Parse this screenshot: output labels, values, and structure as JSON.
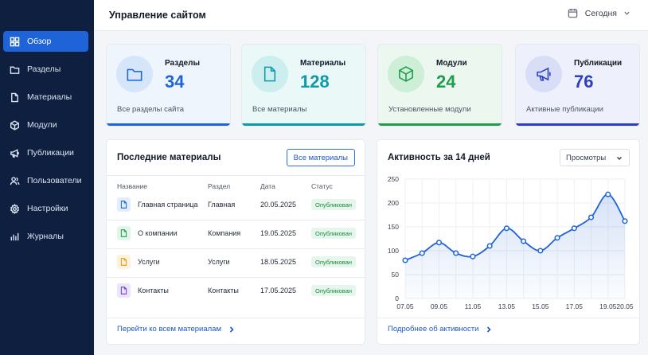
{
  "header": {
    "title": "Управление сайтом",
    "date_filter": "Сегодня"
  },
  "sidebar": {
    "items": [
      {
        "label": "Обзор",
        "icon": "grid-icon",
        "active": true
      },
      {
        "label": "Разделы",
        "icon": "folder-icon"
      },
      {
        "label": "Материалы",
        "icon": "document-icon"
      },
      {
        "label": "Модули",
        "icon": "cube-icon"
      },
      {
        "label": "Публикации",
        "icon": "megaphone-icon"
      },
      {
        "label": "Пользователи",
        "icon": "users-icon"
      },
      {
        "label": "Настройки",
        "icon": "gear-icon"
      },
      {
        "label": "Журналы",
        "icon": "bar-chart-icon"
      }
    ]
  },
  "stats": [
    {
      "label": "Разделы",
      "value": "34",
      "subtitle": "Все разделы сайта",
      "icon": "folder-icon",
      "color": "#1e63d8",
      "bg": "#eef5fd",
      "circle": "#d6e6fa"
    },
    {
      "label": "Материалы",
      "value": "128",
      "subtitle": "Все материалы",
      "icon": "document-icon",
      "color": "#0e9aa7",
      "bg": "#eaf8f8",
      "circle": "#cdeeef"
    },
    {
      "label": "Модули",
      "value": "24",
      "subtitle": "Установленные модули",
      "icon": "cube-icon",
      "color": "#1f9d4c",
      "bg": "#ebf7ef",
      "circle": "#cdeed7"
    },
    {
      "label": "Публикации",
      "value": "76",
      "subtitle": "Активные публикации",
      "icon": "megaphone-icon",
      "color": "#2b3fbf",
      "bg": "#eef0fb",
      "circle": "#d9def7"
    }
  ],
  "recent": {
    "title": "Последние материалы",
    "button": "Все материалы",
    "columns": [
      "Название",
      "Раздел",
      "Дата",
      "Статус"
    ],
    "rows": [
      {
        "name": "Главная страница",
        "section": "Главная",
        "date": "20.05.2025",
        "status": "Опубликован",
        "icon_color": "#1e63d8",
        "icon_bg": "#e3edfc"
      },
      {
        "name": "О компании",
        "section": "Компания",
        "date": "19.05.2025",
        "status": "Опубликован",
        "icon_color": "#1f9d4c",
        "icon_bg": "#e3f5e9"
      },
      {
        "name": "Услуги",
        "section": "Услуги",
        "date": "18.05.2025",
        "status": "Опубликован",
        "icon_color": "#e59a12",
        "icon_bg": "#fdf2dd"
      },
      {
        "name": "Контакты",
        "section": "Контакты",
        "date": "17.05.2025",
        "status": "Опубликован",
        "icon_color": "#6d3fd0",
        "icon_bg": "#ece5fb"
      }
    ],
    "footer_link": "Перейти ко всем материалам"
  },
  "activity": {
    "title": "Активность за 14 дней",
    "metric_select": "Просмотры",
    "footer_link": "Подробнее об активности"
  },
  "chart_data": {
    "type": "area",
    "title": "Активность за 14 дней",
    "x": [
      "07.05",
      "08.05",
      "09.05",
      "10.05",
      "11.05",
      "12.05",
      "13.05",
      "14.05",
      "15.05",
      "16.05",
      "17.05",
      "18.05",
      "19.05",
      "20.05"
    ],
    "x_tick_labels": [
      "07.05",
      "09.05",
      "11.05",
      "13.05",
      "15.05",
      "17.05",
      "19.05",
      "20.05"
    ],
    "series": [
      {
        "values": [
          80,
          95,
          117,
          95,
          88,
          110,
          147,
          120,
          100,
          127,
          147,
          170,
          218,
          162
        ],
        "color": "#1e63d8"
      }
    ],
    "ylim": [
      0,
      250
    ],
    "yticks": [
      0,
      50,
      100,
      150,
      200,
      250
    ],
    "grid": true
  }
}
